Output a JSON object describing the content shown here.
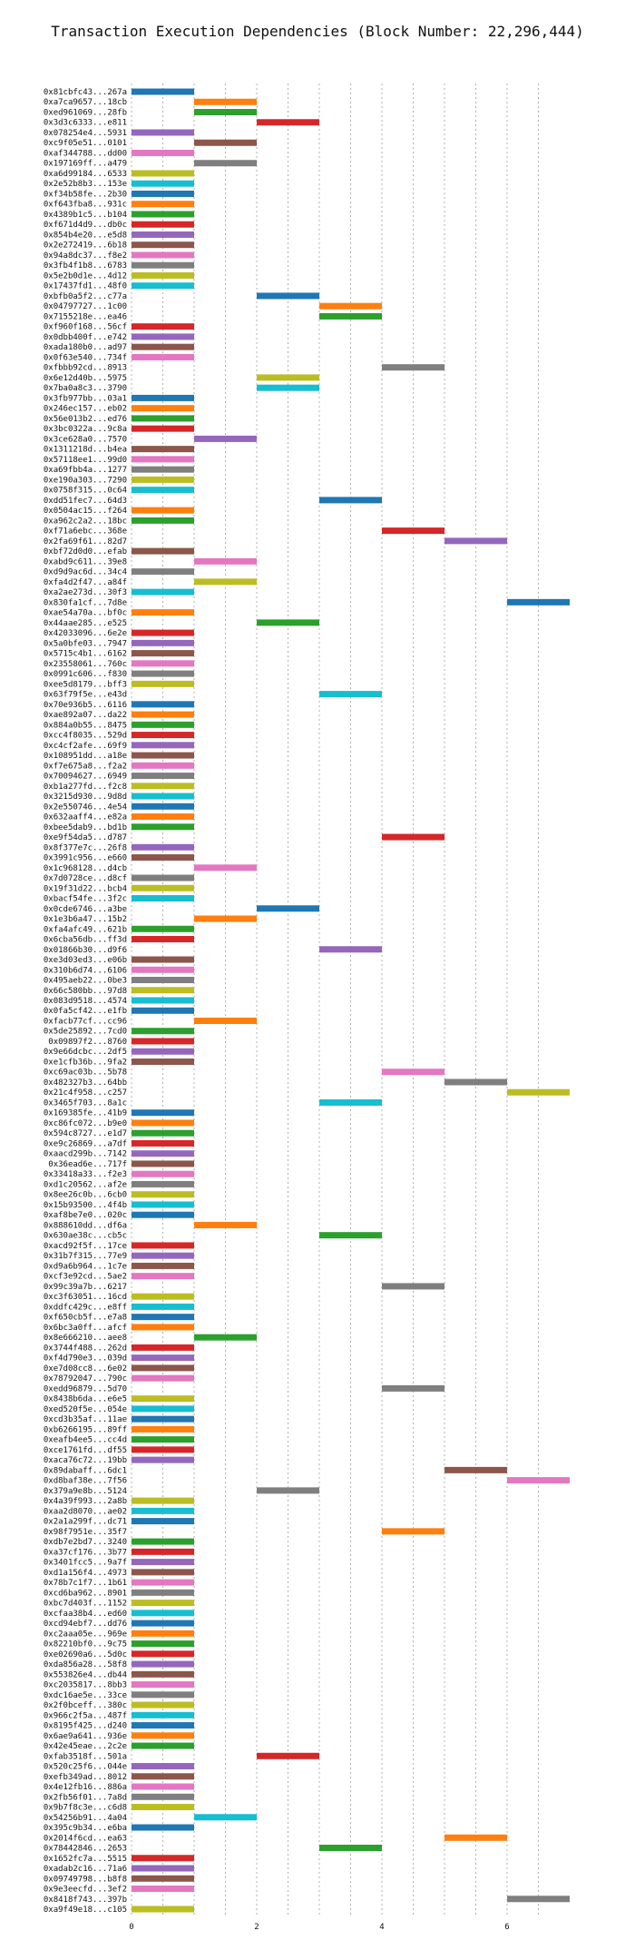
{
  "chart_data": {
    "type": "bar",
    "orientation": "horizontal",
    "title": "Transaction Execution Dependencies (Block Number: 22,296,444)",
    "xlabel": "",
    "ylabel": "",
    "xlim": [
      -0.2,
      7.4
    ],
    "xticks": [
      0,
      2,
      4,
      6
    ],
    "grid": "vertical dotted at 0.5 intervals",
    "legend": "none",
    "palette": [
      "#1f77b4",
      "#ff7f0e",
      "#2ca02c",
      "#d62728",
      "#9467bd",
      "#8c564b",
      "#e377c2",
      "#7f7f7f",
      "#bcbd22",
      "#17becf"
    ],
    "transactions": [
      {
        "tx": "0x81cbfc43...267a",
        "start": 0,
        "end": 1
      },
      {
        "tx": "0xa7ca9657...18cb",
        "start": 1,
        "end": 2
      },
      {
        "tx": "0xed961069...28fb",
        "start": 1,
        "end": 2
      },
      {
        "tx": "0x3d3c6333...e811",
        "start": 2,
        "end": 3
      },
      {
        "tx": "0x078254e4...5931",
        "start": 0,
        "end": 1
      },
      {
        "tx": "0xc9f05e51...0101",
        "start": 1,
        "end": 2
      },
      {
        "tx": "0xaf344788...dd00",
        "start": 0,
        "end": 1
      },
      {
        "tx": "0x197169ff...a479",
        "start": 1,
        "end": 2
      },
      {
        "tx": "0xa6d99184...6533",
        "start": 0,
        "end": 1
      },
      {
        "tx": "0x2e52b8b3...153e",
        "start": 0,
        "end": 1
      },
      {
        "tx": "0xf34b58fe...2b30",
        "start": 0,
        "end": 1
      },
      {
        "tx": "0xf643fba8...931c",
        "start": 0,
        "end": 1
      },
      {
        "tx": "0x4389b1c5...b104",
        "start": 0,
        "end": 1
      },
      {
        "tx": "0xf671d4d9...db0c",
        "start": 0,
        "end": 1
      },
      {
        "tx": "0x854b4e20...e5d8",
        "start": 0,
        "end": 1
      },
      {
        "tx": "0x2e272419...6b18",
        "start": 0,
        "end": 1
      },
      {
        "tx": "0x94a8dc37...f8e2",
        "start": 0,
        "end": 1
      },
      {
        "tx": "0x3fb4f1b8...6783",
        "start": 0,
        "end": 1
      },
      {
        "tx": "0x5e2b0d1e...4d12",
        "start": 0,
        "end": 1
      },
      {
        "tx": "0x17437fd1...48f0",
        "start": 0,
        "end": 1
      },
      {
        "tx": "0xbfb0a5f2...c77a",
        "start": 2,
        "end": 3
      },
      {
        "tx": "0x04797727...1c00",
        "start": 3,
        "end": 4
      },
      {
        "tx": "0x7155218e...ea46",
        "start": 3,
        "end": 4
      },
      {
        "tx": "0xf960f168...56cf",
        "start": 0,
        "end": 1
      },
      {
        "tx": "0x0dbb400f...e742",
        "start": 0,
        "end": 1
      },
      {
        "tx": "0xada180b0...ad97",
        "start": 0,
        "end": 1
      },
      {
        "tx": "0x0f63e540...734f",
        "start": 0,
        "end": 1
      },
      {
        "tx": "0xfbbb92cd...8913",
        "start": 4,
        "end": 5
      },
      {
        "tx": "0x6e12d40b...5975",
        "start": 2,
        "end": 3
      },
      {
        "tx": "0x7ba0a8c3...3790",
        "start": 2,
        "end": 3
      },
      {
        "tx": "0x3fb977bb...03a1",
        "start": 0,
        "end": 1
      },
      {
        "tx": "0x246ec157...eb02",
        "start": 0,
        "end": 1
      },
      {
        "tx": "0x56e013b2...ed76",
        "start": 0,
        "end": 1
      },
      {
        "tx": "0x3bc0322a...9c8a",
        "start": 0,
        "end": 1
      },
      {
        "tx": "0x3ce628a0...7570",
        "start": 1,
        "end": 2
      },
      {
        "tx": "0x1311218d...b4ea",
        "start": 0,
        "end": 1
      },
      {
        "tx": "0x57118ee1...99d0",
        "start": 0,
        "end": 1
      },
      {
        "tx": "0xa69fbb4a...1277",
        "start": 0,
        "end": 1
      },
      {
        "tx": "0xe190a303...7290",
        "start": 0,
        "end": 1
      },
      {
        "tx": "0x0758f315...0c64",
        "start": 0,
        "end": 1
      },
      {
        "tx": "0xdd51fec7...64d3",
        "start": 3,
        "end": 4
      },
      {
        "tx": "0x0504ac15...f264",
        "start": 0,
        "end": 1
      },
      {
        "tx": "0xa962c2a2...18bc",
        "start": 0,
        "end": 1
      },
      {
        "tx": "0xf71a6ebc...368e",
        "start": 4,
        "end": 5
      },
      {
        "tx": "0x2fa69f61...82d7",
        "start": 5,
        "end": 6
      },
      {
        "tx": "0xbf72d0d0...efab",
        "start": 0,
        "end": 1
      },
      {
        "tx": "0xabd9c611...39e8",
        "start": 1,
        "end": 2
      },
      {
        "tx": "0xd9d9ac6d...34c4",
        "start": 0,
        "end": 1
      },
      {
        "tx": "0xfa4d2f47...a84f",
        "start": 1,
        "end": 2
      },
      {
        "tx": "0xa2ae273d...30f3",
        "start": 0,
        "end": 1
      },
      {
        "tx": "0x830fa1cf...7d8e",
        "start": 6,
        "end": 7
      },
      {
        "tx": "0xae54a70a...bf0c",
        "start": 0,
        "end": 1
      },
      {
        "tx": "0x44aae285...e525",
        "start": 2,
        "end": 3
      },
      {
        "tx": "0x42033096...6e2e",
        "start": 0,
        "end": 1
      },
      {
        "tx": "0x5a0bfe03...7947",
        "start": 0,
        "end": 1
      },
      {
        "tx": "0x5715c4b1...6162",
        "start": 0,
        "end": 1
      },
      {
        "tx": "0x23558061...760c",
        "start": 0,
        "end": 1
      },
      {
        "tx": "0x0991c606...f830",
        "start": 0,
        "end": 1
      },
      {
        "tx": "0xee5d8179...bff3",
        "start": 0,
        "end": 1
      },
      {
        "tx": "0x63f79f5e...e43d",
        "start": 3,
        "end": 4
      },
      {
        "tx": "0x70e936b5...6116",
        "start": 0,
        "end": 1
      },
      {
        "tx": "0xae892a07...da22",
        "start": 0,
        "end": 1
      },
      {
        "tx": "0x884a0b55...8475",
        "start": 0,
        "end": 1
      },
      {
        "tx": "0xcc4f8035...529d",
        "start": 0,
        "end": 1
      },
      {
        "tx": "0xc4cf2afe...69f9",
        "start": 0,
        "end": 1
      },
      {
        "tx": "0x108951dd...a18e",
        "start": 0,
        "end": 1
      },
      {
        "tx": "0xf7e675a8...f2a2",
        "start": 0,
        "end": 1
      },
      {
        "tx": "0x70094627...6949",
        "start": 0,
        "end": 1
      },
      {
        "tx": "0xb1a277fd...f2c8",
        "start": 0,
        "end": 1
      },
      {
        "tx": "0x3215d930...9d8d",
        "start": 0,
        "end": 1
      },
      {
        "tx": "0x2e550746...4e54",
        "start": 0,
        "end": 1
      },
      {
        "tx": "0x632aaff4...e82a",
        "start": 0,
        "end": 1
      },
      {
        "tx": "0xbee5dab9...bd1b",
        "start": 0,
        "end": 1
      },
      {
        "tx": "0xe9f54da5...d787",
        "start": 4,
        "end": 5
      },
      {
        "tx": "0x8f377e7c...26f8",
        "start": 0,
        "end": 1
      },
      {
        "tx": "0x3991c956...e660",
        "start": 0,
        "end": 1
      },
      {
        "tx": "0x1c968128...d4cb",
        "start": 1,
        "end": 2
      },
      {
        "tx": "0x7d0728ce...d8cf",
        "start": 0,
        "end": 1
      },
      {
        "tx": "0x19f31d22...bcb4",
        "start": 0,
        "end": 1
      },
      {
        "tx": "0xbacf54fe...3f2c",
        "start": 0,
        "end": 1
      },
      {
        "tx": "0x0cde6746...a3be",
        "start": 2,
        "end": 3
      },
      {
        "tx": "0x1e3b6a47...15b2",
        "start": 1,
        "end": 2
      },
      {
        "tx": "0xfa4afc49...621b",
        "start": 0,
        "end": 1
      },
      {
        "tx": "0x6cba56db...ff3d",
        "start": 0,
        "end": 1
      },
      {
        "tx": "0x01866b30...d9f6",
        "start": 3,
        "end": 4
      },
      {
        "tx": "0xe3d03ed3...e06b",
        "start": 0,
        "end": 1
      },
      {
        "tx": "0x310b6d74...6106",
        "start": 0,
        "end": 1
      },
      {
        "tx": "0x495aeb22...0be3",
        "start": 0,
        "end": 1
      },
      {
        "tx": "0x66c580bb...97d8",
        "start": 0,
        "end": 1
      },
      {
        "tx": "0x083d9518...4574",
        "start": 0,
        "end": 1
      },
      {
        "tx": "0x0fa5cf42...e1fb",
        "start": 0,
        "end": 1
      },
      {
        "tx": "0xfacb77cf...cc96",
        "start": 1,
        "end": 2
      },
      {
        "tx": "0x5de25892...7cd0",
        "start": 0,
        "end": 1
      },
      {
        "tx": "0x09897f2...8760",
        "start": 0,
        "end": 1
      },
      {
        "tx": "0x9e66dcbc...2df5",
        "start": 0,
        "end": 1
      },
      {
        "tx": "0xe1cfb36b...9fa2",
        "start": 0,
        "end": 1
      },
      {
        "tx": "0xc69ac03b...5b78",
        "start": 4,
        "end": 5
      },
      {
        "tx": "0x482327b3...64bb",
        "start": 5,
        "end": 6
      },
      {
        "tx": "0x21c4f958...c257",
        "start": 6,
        "end": 7
      },
      {
        "tx": "0x3465f703...8a1c",
        "start": 3,
        "end": 4
      },
      {
        "tx": "0x169385fe...41b9",
        "start": 0,
        "end": 1
      },
      {
        "tx": "0xc86fc072...b9e0",
        "start": 0,
        "end": 1
      },
      {
        "tx": "0x594c8727...e1d7",
        "start": 0,
        "end": 1
      },
      {
        "tx": "0xe9c26869...a7df",
        "start": 0,
        "end": 1
      },
      {
        "tx": "0xaacd299b...7142",
        "start": 0,
        "end": 1
      },
      {
        "tx": "0x36ead6e...717f",
        "start": 0,
        "end": 1
      },
      {
        "tx": "0x33418a33...f2e3",
        "start": 0,
        "end": 1
      },
      {
        "tx": "0xd1c20562...af2e",
        "start": 0,
        "end": 1
      },
      {
        "tx": "0x8ee26c0b...6cb0",
        "start": 0,
        "end": 1
      },
      {
        "tx": "0x15b93500...4f4b",
        "start": 0,
        "end": 1
      },
      {
        "tx": "0xaf8be7e0...020c",
        "start": 0,
        "end": 1
      },
      {
        "tx": "0x888610dd...df6a",
        "start": 1,
        "end": 2
      },
      {
        "tx": "0x630ae38c...cb5c",
        "start": 3,
        "end": 4
      },
      {
        "tx": "0xacd92f5f...17ce",
        "start": 0,
        "end": 1
      },
      {
        "tx": "0x31b7f315...77e9",
        "start": 0,
        "end": 1
      },
      {
        "tx": "0xd9a6b964...1c7e",
        "start": 0,
        "end": 1
      },
      {
        "tx": "0xcf3e92cd...5ae2",
        "start": 0,
        "end": 1
      },
      {
        "tx": "0x99c39a7b...6217",
        "start": 4,
        "end": 5
      },
      {
        "tx": "0xc3f63051...16cd",
        "start": 0,
        "end": 1
      },
      {
        "tx": "0xddfc429c...e8ff",
        "start": 0,
        "end": 1
      },
      {
        "tx": "0xf650cb5f...e7a8",
        "start": 0,
        "end": 1
      },
      {
        "tx": "0x6bc3a0ff...afcf",
        "start": 0,
        "end": 1
      },
      {
        "tx": "0x8e666210...aee8",
        "start": 1,
        "end": 2
      },
      {
        "tx": "0x3744f488...262d",
        "start": 0,
        "end": 1
      },
      {
        "tx": "0xf4d790e3...039d",
        "start": 0,
        "end": 1
      },
      {
        "tx": "0xe7d08cc8...6e02",
        "start": 0,
        "end": 1
      },
      {
        "tx": "0x78792047...790c",
        "start": 0,
        "end": 1
      },
      {
        "tx": "0xedd96879...5d70",
        "start": 4,
        "end": 5
      },
      {
        "tx": "0x8438b6da...e6e5",
        "start": 0,
        "end": 1
      },
      {
        "tx": "0xed520f5e...054e",
        "start": 0,
        "end": 1
      },
      {
        "tx": "0xcd3b35af...11ae",
        "start": 0,
        "end": 1
      },
      {
        "tx": "0xb6266195...89ff",
        "start": 0,
        "end": 1
      },
      {
        "tx": "0xeafb4ee5...cc4d",
        "start": 0,
        "end": 1
      },
      {
        "tx": "0xce1761fd...df55",
        "start": 0,
        "end": 1
      },
      {
        "tx": "0xaca76c72...19bb",
        "start": 0,
        "end": 1
      },
      {
        "tx": "0x89dabaff...6dc1",
        "start": 5,
        "end": 6
      },
      {
        "tx": "0xd8baf38e...7f56",
        "start": 6,
        "end": 7
      },
      {
        "tx": "0x379a9e8b...5124",
        "start": 2,
        "end": 3
      },
      {
        "tx": "0x4a39f993...2a8b",
        "start": 0,
        "end": 1
      },
      {
        "tx": "0xaa2d8070...ae02",
        "start": 0,
        "end": 1
      },
      {
        "tx": "0x2a1a299f...dc71",
        "start": 0,
        "end": 1
      },
      {
        "tx": "0x98f7951e...35f7",
        "start": 4,
        "end": 5
      },
      {
        "tx": "0xdb7e2bd7...3240",
        "start": 0,
        "end": 1
      },
      {
        "tx": "0xa37cf176...3b77",
        "start": 0,
        "end": 1
      },
      {
        "tx": "0x3401fcc5...9a7f",
        "start": 0,
        "end": 1
      },
      {
        "tx": "0xd1a156f4...4973",
        "start": 0,
        "end": 1
      },
      {
        "tx": "0x78b7c1f7...1b61",
        "start": 0,
        "end": 1
      },
      {
        "tx": "0xcd6ba962...8901",
        "start": 0,
        "end": 1
      },
      {
        "tx": "0xbc7d403f...1152",
        "start": 0,
        "end": 1
      },
      {
        "tx": "0xcfaa38b4...ed60",
        "start": 0,
        "end": 1
      },
      {
        "tx": "0xcd94ebf7...dd76",
        "start": 0,
        "end": 1
      },
      {
        "tx": "0xc2aaa05e...969e",
        "start": 0,
        "end": 1
      },
      {
        "tx": "0x82210bf0...9c75",
        "start": 0,
        "end": 1
      },
      {
        "tx": "0xe02690a6...5d0c",
        "start": 0,
        "end": 1
      },
      {
        "tx": "0xda856a28...58f8",
        "start": 0,
        "end": 1
      },
      {
        "tx": "0x553826e4...db44",
        "start": 0,
        "end": 1
      },
      {
        "tx": "0xc2035817...8bb3",
        "start": 0,
        "end": 1
      },
      {
        "tx": "0xdc16ae5e...33ce",
        "start": 0,
        "end": 1
      },
      {
        "tx": "0x2f0bceff...380c",
        "start": 0,
        "end": 1
      },
      {
        "tx": "0x966c2f5a...487f",
        "start": 0,
        "end": 1
      },
      {
        "tx": "0x8195f425...d240",
        "start": 0,
        "end": 1
      },
      {
        "tx": "0x6ae9a641...936e",
        "start": 0,
        "end": 1
      },
      {
        "tx": "0x42e45eae...2c2e",
        "start": 0,
        "end": 1
      },
      {
        "tx": "0xfab3518f...501a",
        "start": 2,
        "end": 3
      },
      {
        "tx": "0x520c25f6...044e",
        "start": 0,
        "end": 1
      },
      {
        "tx": "0xefb349ad...8012",
        "start": 0,
        "end": 1
      },
      {
        "tx": "0x4e12fb16...886a",
        "start": 0,
        "end": 1
      },
      {
        "tx": "0x2fb56f01...7a8d",
        "start": 0,
        "end": 1
      },
      {
        "tx": "0x9b7f8c3e...c6d8",
        "start": 0,
        "end": 1
      },
      {
        "tx": "0x54256b91...4a04",
        "start": 1,
        "end": 2
      },
      {
        "tx": "0x395c9b34...e6ba",
        "start": 0,
        "end": 1
      },
      {
        "tx": "0x2014f6cd...ea63",
        "start": 5,
        "end": 6
      },
      {
        "tx": "0x78442846...2653",
        "start": 3,
        "end": 4
      },
      {
        "tx": "0x1652fc7a...5515",
        "start": 0,
        "end": 1
      },
      {
        "tx": "0xadab2c16...71a6",
        "start": 0,
        "end": 1
      },
      {
        "tx": "0x09749798...b8f8",
        "start": 0,
        "end": 1
      },
      {
        "tx": "0x9e3eecfd...3ef2",
        "start": 0,
        "end": 1
      },
      {
        "tx": "0x8418f743...397b",
        "start": 6,
        "end": 7
      },
      {
        "tx": "0xa9f49e18...c105",
        "start": 0,
        "end": 1
      }
    ]
  }
}
